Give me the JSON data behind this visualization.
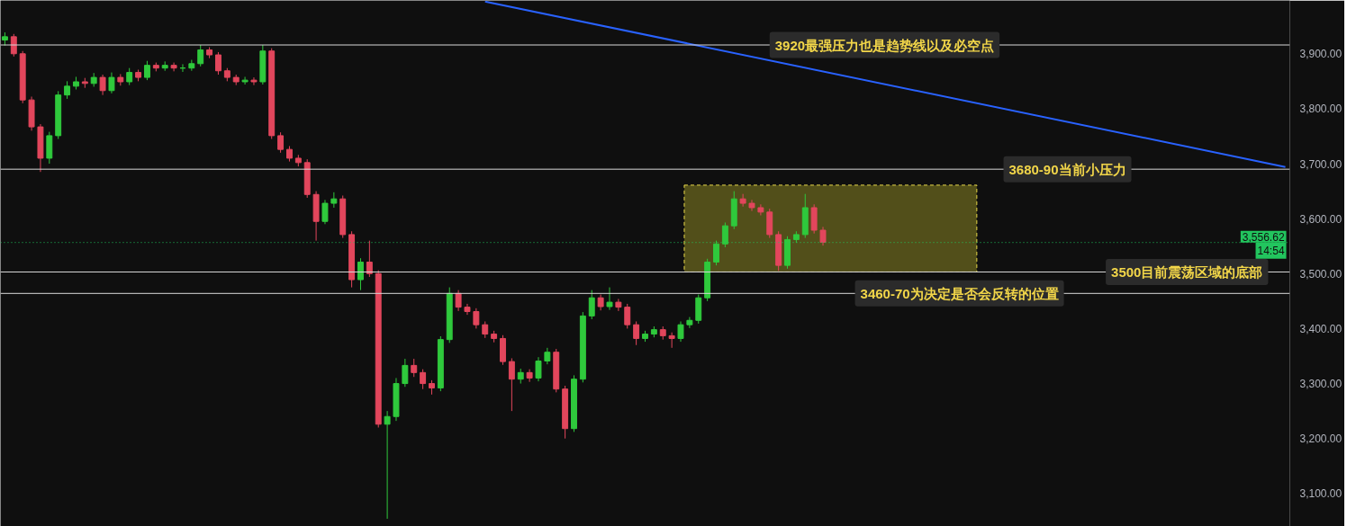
{
  "chart_data": {
    "type": "candlestick",
    "categories": [
      null,
      null,
      null,
      null,
      null,
      null,
      null,
      null,
      null,
      null,
      null,
      null,
      null,
      null,
      null,
      null,
      null,
      null,
      null,
      null,
      null,
      null,
      null,
      null,
      null,
      null,
      null,
      null,
      null,
      null,
      null,
      null,
      null,
      null,
      null,
      null,
      null,
      null,
      null,
      null,
      null,
      null,
      null,
      null,
      null,
      null,
      null,
      null,
      null,
      null,
      null,
      null,
      null,
      null,
      null,
      null,
      null,
      null,
      null,
      null,
      null,
      null,
      null,
      null,
      null,
      null,
      null,
      null,
      null,
      null,
      null,
      null,
      null,
      null,
      null,
      null,
      null,
      null,
      null,
      null,
      null,
      null,
      null,
      null,
      null,
      null,
      null,
      null,
      null,
      null,
      null,
      null,
      null,
      null,
      null,
      null,
      null,
      null,
      null,
      null,
      null,
      null,
      null,
      null,
      null,
      null,
      null,
      null,
      null,
      null,
      null,
      null,
      null,
      null,
      null,
      null,
      null,
      null,
      null,
      null,
      null,
      null,
      null,
      null,
      null,
      null,
      null,
      null,
      null,
      null,
      null,
      null,
      null,
      null,
      null,
      null,
      null,
      null,
      null,
      null,
      null,
      null,
      null,
      null,
      null
    ],
    "ohlc": [
      [
        3925,
        3939,
        3915,
        3931
      ],
      [
        3931,
        3936,
        3895,
        3900
      ],
      [
        3900,
        3905,
        3810,
        3816
      ],
      [
        3816,
        3822,
        3760,
        3767
      ],
      [
        3767,
        3772,
        3685,
        3710
      ],
      [
        3710,
        3758,
        3700,
        3751
      ],
      [
        3751,
        3832,
        3745,
        3825
      ],
      [
        3825,
        3850,
        3818,
        3841
      ],
      [
        3841,
        3858,
        3835,
        3849
      ],
      [
        3849,
        3856,
        3838,
        3846
      ],
      [
        3846,
        3865,
        3840,
        3857
      ],
      [
        3857,
        3862,
        3825,
        3833
      ],
      [
        3833,
        3866,
        3828,
        3857
      ],
      [
        3857,
        3863,
        3842,
        3849
      ],
      [
        3849,
        3874,
        3843,
        3866
      ],
      [
        3866,
        3871,
        3850,
        3857
      ],
      [
        3857,
        3887,
        3852,
        3879
      ],
      [
        3879,
        3884,
        3868,
        3874
      ],
      [
        3874,
        3886,
        3869,
        3879
      ],
      [
        3879,
        3884,
        3868,
        3874
      ],
      [
        3874,
        3881,
        3867,
        3874
      ],
      [
        3874,
        3889,
        3869,
        3882
      ],
      [
        3882,
        3916,
        3877,
        3907
      ],
      [
        3907,
        3912,
        3892,
        3898
      ],
      [
        3898,
        3903,
        3862,
        3869
      ],
      [
        3869,
        3874,
        3850,
        3857
      ],
      [
        3857,
        3862,
        3843,
        3849
      ],
      [
        3849,
        3858,
        3844,
        3852
      ],
      [
        3852,
        3857,
        3843,
        3849
      ],
      [
        3849,
        3916,
        3844,
        3905
      ],
      [
        3905,
        3910,
        3745,
        3751
      ],
      [
        3751,
        3757,
        3720,
        3726
      ],
      [
        3726,
        3732,
        3704,
        3710
      ],
      [
        3710,
        3716,
        3695,
        3702
      ],
      [
        3702,
        3708,
        3638,
        3644
      ],
      [
        3644,
        3650,
        3560,
        3595
      ],
      [
        3595,
        3634,
        3590,
        3628
      ],
      [
        3628,
        3648,
        3620,
        3636
      ],
      [
        3636,
        3642,
        3565,
        3571
      ],
      [
        3571,
        3577,
        3475,
        3489
      ],
      [
        3489,
        3528,
        3470,
        3521
      ],
      [
        3521,
        3560,
        3494,
        3500
      ],
      [
        3500,
        3506,
        3220,
        3226
      ],
      [
        3226,
        3250,
        3054,
        3240
      ],
      [
        3240,
        3310,
        3232,
        3300
      ],
      [
        3300,
        3345,
        3294,
        3333
      ],
      [
        3333,
        3345,
        3312,
        3320
      ],
      [
        3320,
        3326,
        3290,
        3300
      ],
      [
        3300,
        3306,
        3280,
        3292
      ],
      [
        3292,
        3386,
        3286,
        3380
      ],
      [
        3380,
        3475,
        3374,
        3464
      ],
      [
        3464,
        3470,
        3432,
        3439
      ],
      [
        3439,
        3445,
        3425,
        3431
      ],
      [
        3431,
        3437,
        3400,
        3407
      ],
      [
        3407,
        3413,
        3383,
        3390
      ],
      [
        3390,
        3396,
        3375,
        3382
      ],
      [
        3382,
        3388,
        3334,
        3340
      ],
      [
        3340,
        3346,
        3250,
        3308
      ],
      [
        3308,
        3327,
        3300,
        3320
      ],
      [
        3320,
        3326,
        3303,
        3310
      ],
      [
        3310,
        3348,
        3304,
        3341
      ],
      [
        3341,
        3365,
        3335,
        3357
      ],
      [
        3357,
        3363,
        3284,
        3290
      ],
      [
        3290,
        3296,
        3200,
        3218
      ],
      [
        3218,
        3315,
        3212,
        3308
      ],
      [
        3308,
        3430,
        3302,
        3423
      ],
      [
        3423,
        3470,
        3417,
        3456
      ],
      [
        3456,
        3462,
        3433,
        3440
      ],
      [
        3440,
        3475,
        3434,
        3448
      ],
      [
        3448,
        3454,
        3432,
        3439
      ],
      [
        3439,
        3445,
        3400,
        3407
      ],
      [
        3407,
        3413,
        3370,
        3382
      ],
      [
        3382,
        3396,
        3376,
        3390
      ],
      [
        3390,
        3404,
        3384,
        3398
      ],
      [
        3398,
        3404,
        3380,
        3387
      ],
      [
        3387,
        3393,
        3365,
        3382
      ],
      [
        3382,
        3413,
        3376,
        3407
      ],
      [
        3407,
        3421,
        3401,
        3415
      ],
      [
        3415,
        3462,
        3409,
        3456
      ],
      [
        3456,
        3527,
        3450,
        3521
      ],
      [
        3521,
        3560,
        3515,
        3554
      ],
      [
        3554,
        3593,
        3548,
        3587
      ],
      [
        3587,
        3650,
        3581,
        3636
      ],
      [
        3636,
        3645,
        3622,
        3628
      ],
      [
        3628,
        3634,
        3614,
        3620
      ],
      [
        3620,
        3626,
        3606,
        3612
      ],
      [
        3612,
        3618,
        3565,
        3571
      ],
      [
        3571,
        3577,
        3505,
        3515
      ],
      [
        3515,
        3568,
        3509,
        3562
      ],
      [
        3562,
        3577,
        3556,
        3571
      ],
      [
        3571,
        3645,
        3565,
        3620
      ],
      [
        3620,
        3626,
        3573,
        3579
      ],
      [
        3579,
        3585,
        3551,
        3557
      ],
      null,
      null,
      null,
      null,
      null,
      null,
      null,
      null,
      null,
      null,
      null,
      null,
      null,
      null,
      null,
      null,
      null,
      null,
      null,
      null,
      null,
      null,
      null,
      null,
      null,
      null,
      null,
      null,
      null,
      null,
      null,
      null,
      null,
      null,
      null,
      null,
      null,
      null,
      null,
      null,
      null,
      null,
      null,
      null,
      null,
      null,
      null,
      null,
      null,
      null,
      null,
      null
    ],
    "series": [
      {
        "type": "line",
        "color": "#2962ff",
        "values": [
          null,
          null,
          null,
          null,
          null,
          null,
          null,
          null,
          null,
          null,
          null,
          null,
          null,
          null,
          null,
          null,
          null,
          null,
          null,
          null,
          null,
          null,
          null,
          null,
          null,
          null,
          null,
          null,
          null,
          null,
          null,
          null,
          null,
          null,
          null,
          null,
          null,
          null,
          null,
          null,
          null,
          null,
          null,
          null,
          null,
          null,
          null,
          null,
          null,
          null,
          null,
          null,
          null,
          null,
          3995,
          null,
          null,
          null,
          null,
          null,
          null,
          null,
          null,
          null,
          null,
          null,
          null,
          null,
          null,
          null,
          null,
          null,
          null,
          null,
          null,
          null,
          null,
          null,
          null,
          null,
          null,
          null,
          null,
          null,
          null,
          null,
          null,
          null,
          null,
          null,
          null,
          null,
          null,
          null,
          null,
          null,
          null,
          null,
          null,
          null,
          null,
          null,
          null,
          null,
          null,
          null,
          null,
          null,
          null,
          null,
          null,
          null,
          null,
          null,
          null,
          null,
          null,
          null,
          null,
          null,
          null,
          null,
          null,
          null,
          null,
          null,
          null,
          null,
          null,
          null,
          null,
          null,
          null,
          null,
          null,
          null,
          null,
          null,
          null,
          null,
          null,
          null,
          null,
          null,
          3694
        ]
      }
    ],
    "ylim": [
      3040,
      3997
    ],
    "yticks": [
      {
        "value": 3100,
        "label": "3,100.00"
      },
      {
        "value": 3200,
        "label": "3,200.00"
      },
      {
        "value": 3300,
        "label": "3,300.00"
      },
      {
        "value": 3400,
        "label": "3,400.00"
      },
      {
        "value": 3500,
        "label": "3,500.00"
      },
      {
        "value": 3600,
        "label": "3,600.00"
      },
      {
        "value": 3700,
        "label": "3,700.00"
      },
      {
        "value": 3800,
        "label": "3,800.00"
      },
      {
        "value": 3900,
        "label": "3,900.00"
      }
    ],
    "ref_lines": [
      {
        "axis": "y",
        "value": 3916,
        "label": "3920最强压力也是趋势线以及必空点",
        "color": "#d9d9d9"
      },
      {
        "axis": "y",
        "value": 3690,
        "label": "3680-90当前小压力",
        "color": "#d9d9d9"
      },
      {
        "axis": "y",
        "value": 3503,
        "label": "3500目前震荡区域的底部",
        "color": "#d9d9d9"
      },
      {
        "axis": "y",
        "value": 3464,
        "label": "3460-70为决定是否会反转的位置",
        "color": "#d9d9d9"
      },
      {
        "axis": "y",
        "value": 3556.62,
        "label": "3,556.62",
        "color": "#22c55e",
        "line_style": "dotted"
      }
    ],
    "bands": [
      {
        "axis": "y",
        "from": 3503,
        "to": 3661,
        "color": "#5e5a1c"
      }
    ],
    "annotations": [
      "14:54"
    ],
    "grid": false,
    "tick_labels": "y"
  }
}
